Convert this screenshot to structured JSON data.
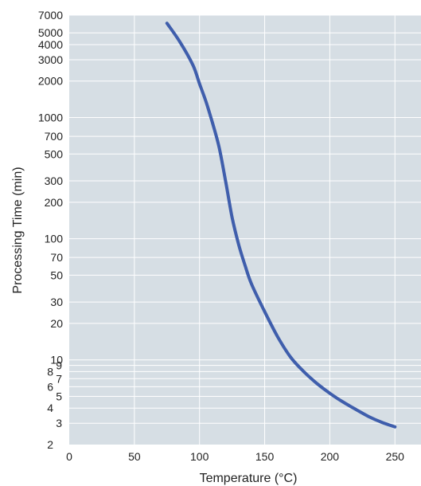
{
  "chart_data": {
    "type": "line",
    "xlabel": "Temperature (°C)",
    "ylabel": "Processing Time (min)",
    "xlim": [
      0,
      270
    ],
    "ylim": [
      2,
      7000
    ],
    "y_scale": "log",
    "grid": true,
    "x_ticks": [
      0,
      50,
      100,
      150,
      200,
      250
    ],
    "y_ticks": [
      2,
      3,
      4,
      5,
      6,
      7,
      8,
      9,
      10,
      20,
      30,
      50,
      70,
      100,
      200,
      300,
      500,
      700,
      1000,
      2000,
      3000,
      4000,
      5000,
      7000
    ],
    "series": [
      {
        "color": "#3f5eac",
        "x": [
          75,
          85,
          95,
          100,
          105,
          110,
          115,
          120,
          125,
          130,
          135,
          140,
          150,
          160,
          170,
          180,
          190,
          200,
          210,
          220,
          230,
          240,
          250
        ],
        "y": [
          6000,
          4200,
          2700,
          1900,
          1350,
          900,
          570,
          300,
          150,
          90,
          60,
          42,
          25,
          15.5,
          10.5,
          8,
          6.4,
          5.3,
          4.5,
          3.9,
          3.4,
          3.05,
          2.8
        ]
      }
    ],
    "colors": {
      "plot_background": "#d6dee4",
      "grid": "#ffffff",
      "line": "#3f5eac"
    }
  }
}
